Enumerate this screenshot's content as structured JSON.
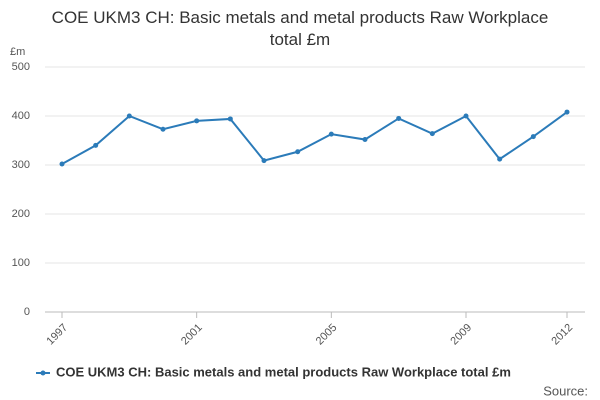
{
  "chart_data": {
    "type": "line",
    "title": "COE UKM3 CH: Basic metals and metal products Raw Workplace total £m",
    "y_label": "£m",
    "source": "Source:",
    "x": [
      1997,
      1998,
      1999,
      2000,
      2001,
      2002,
      2003,
      2004,
      2005,
      2006,
      2007,
      2008,
      2009,
      2010,
      2011,
      2012
    ],
    "series": [
      {
        "name": "COE UKM3 CH: Basic metals and metal products Raw Workplace total £m",
        "color": "#2b7bb9",
        "values": [
          302,
          340,
          400,
          373,
          390,
          394,
          309,
          327,
          363,
          352,
          395,
          364,
          400,
          312,
          358,
          408
        ]
      }
    ],
    "xlim": [
      1997,
      2012
    ],
    "xticks": [
      1997,
      2001,
      2005,
      2009,
      2012
    ],
    "ylim": [
      0,
      500
    ],
    "yticks": [
      0,
      100,
      200,
      300,
      400,
      500
    ],
    "grid": true
  }
}
